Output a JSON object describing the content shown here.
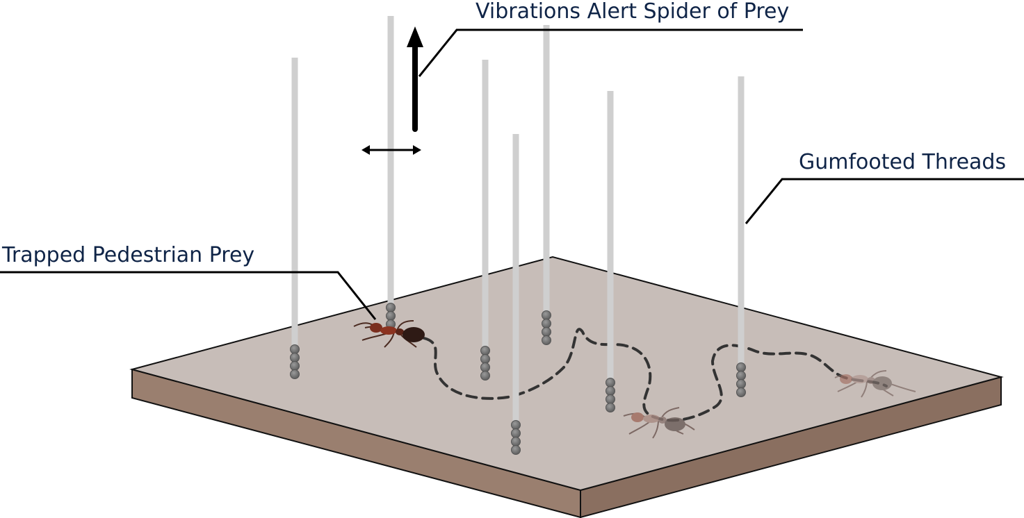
{
  "labels": {
    "vibrations": "Vibrations Alert Spider of Prey",
    "gumfooted": "Gumfooted Threads",
    "trapped": "Trapped Pedestrian Prey"
  },
  "colors": {
    "label_text": "#0f2447",
    "board_top": "#c7bdb8",
    "board_side": "#9a7f6f",
    "thread": "#cfcfcf",
    "glue_droplet": "#7a7a7a",
    "walking_path": "#333333",
    "ant_trapped": "#7a2e1e",
    "ant_faded": "#a88a82"
  },
  "icons": [
    "ant-icon",
    "arrow-up-icon",
    "double-arrow-icon"
  ]
}
